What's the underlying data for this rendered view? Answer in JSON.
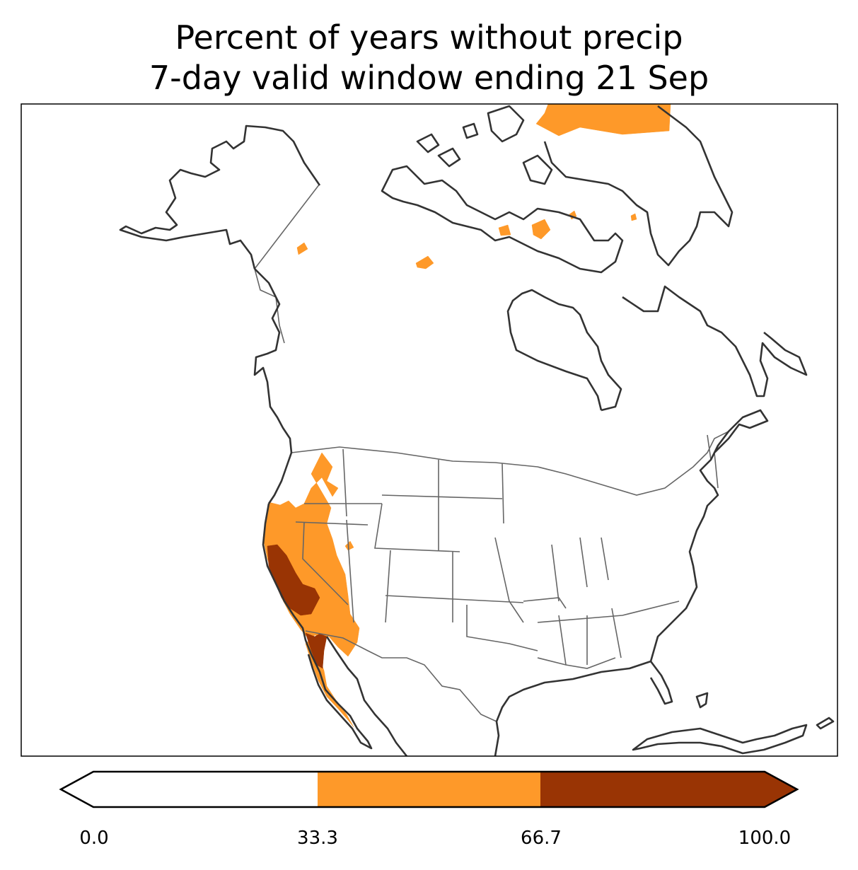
{
  "title": {
    "line1": "Percent of years without precip",
    "line2": "7-day valid window ending 21 Sep"
  },
  "colors": {
    "low": "#ffffff",
    "mid": "#fe9929",
    "high": "#993404",
    "coast": "#333333",
    "border": "#666666"
  },
  "colorbar": {
    "ticks": [
      "0.0",
      "33.3",
      "66.7",
      "100.0"
    ],
    "levels": [
      0.0,
      33.3,
      66.7,
      100.0
    ],
    "extend": "both"
  }
}
